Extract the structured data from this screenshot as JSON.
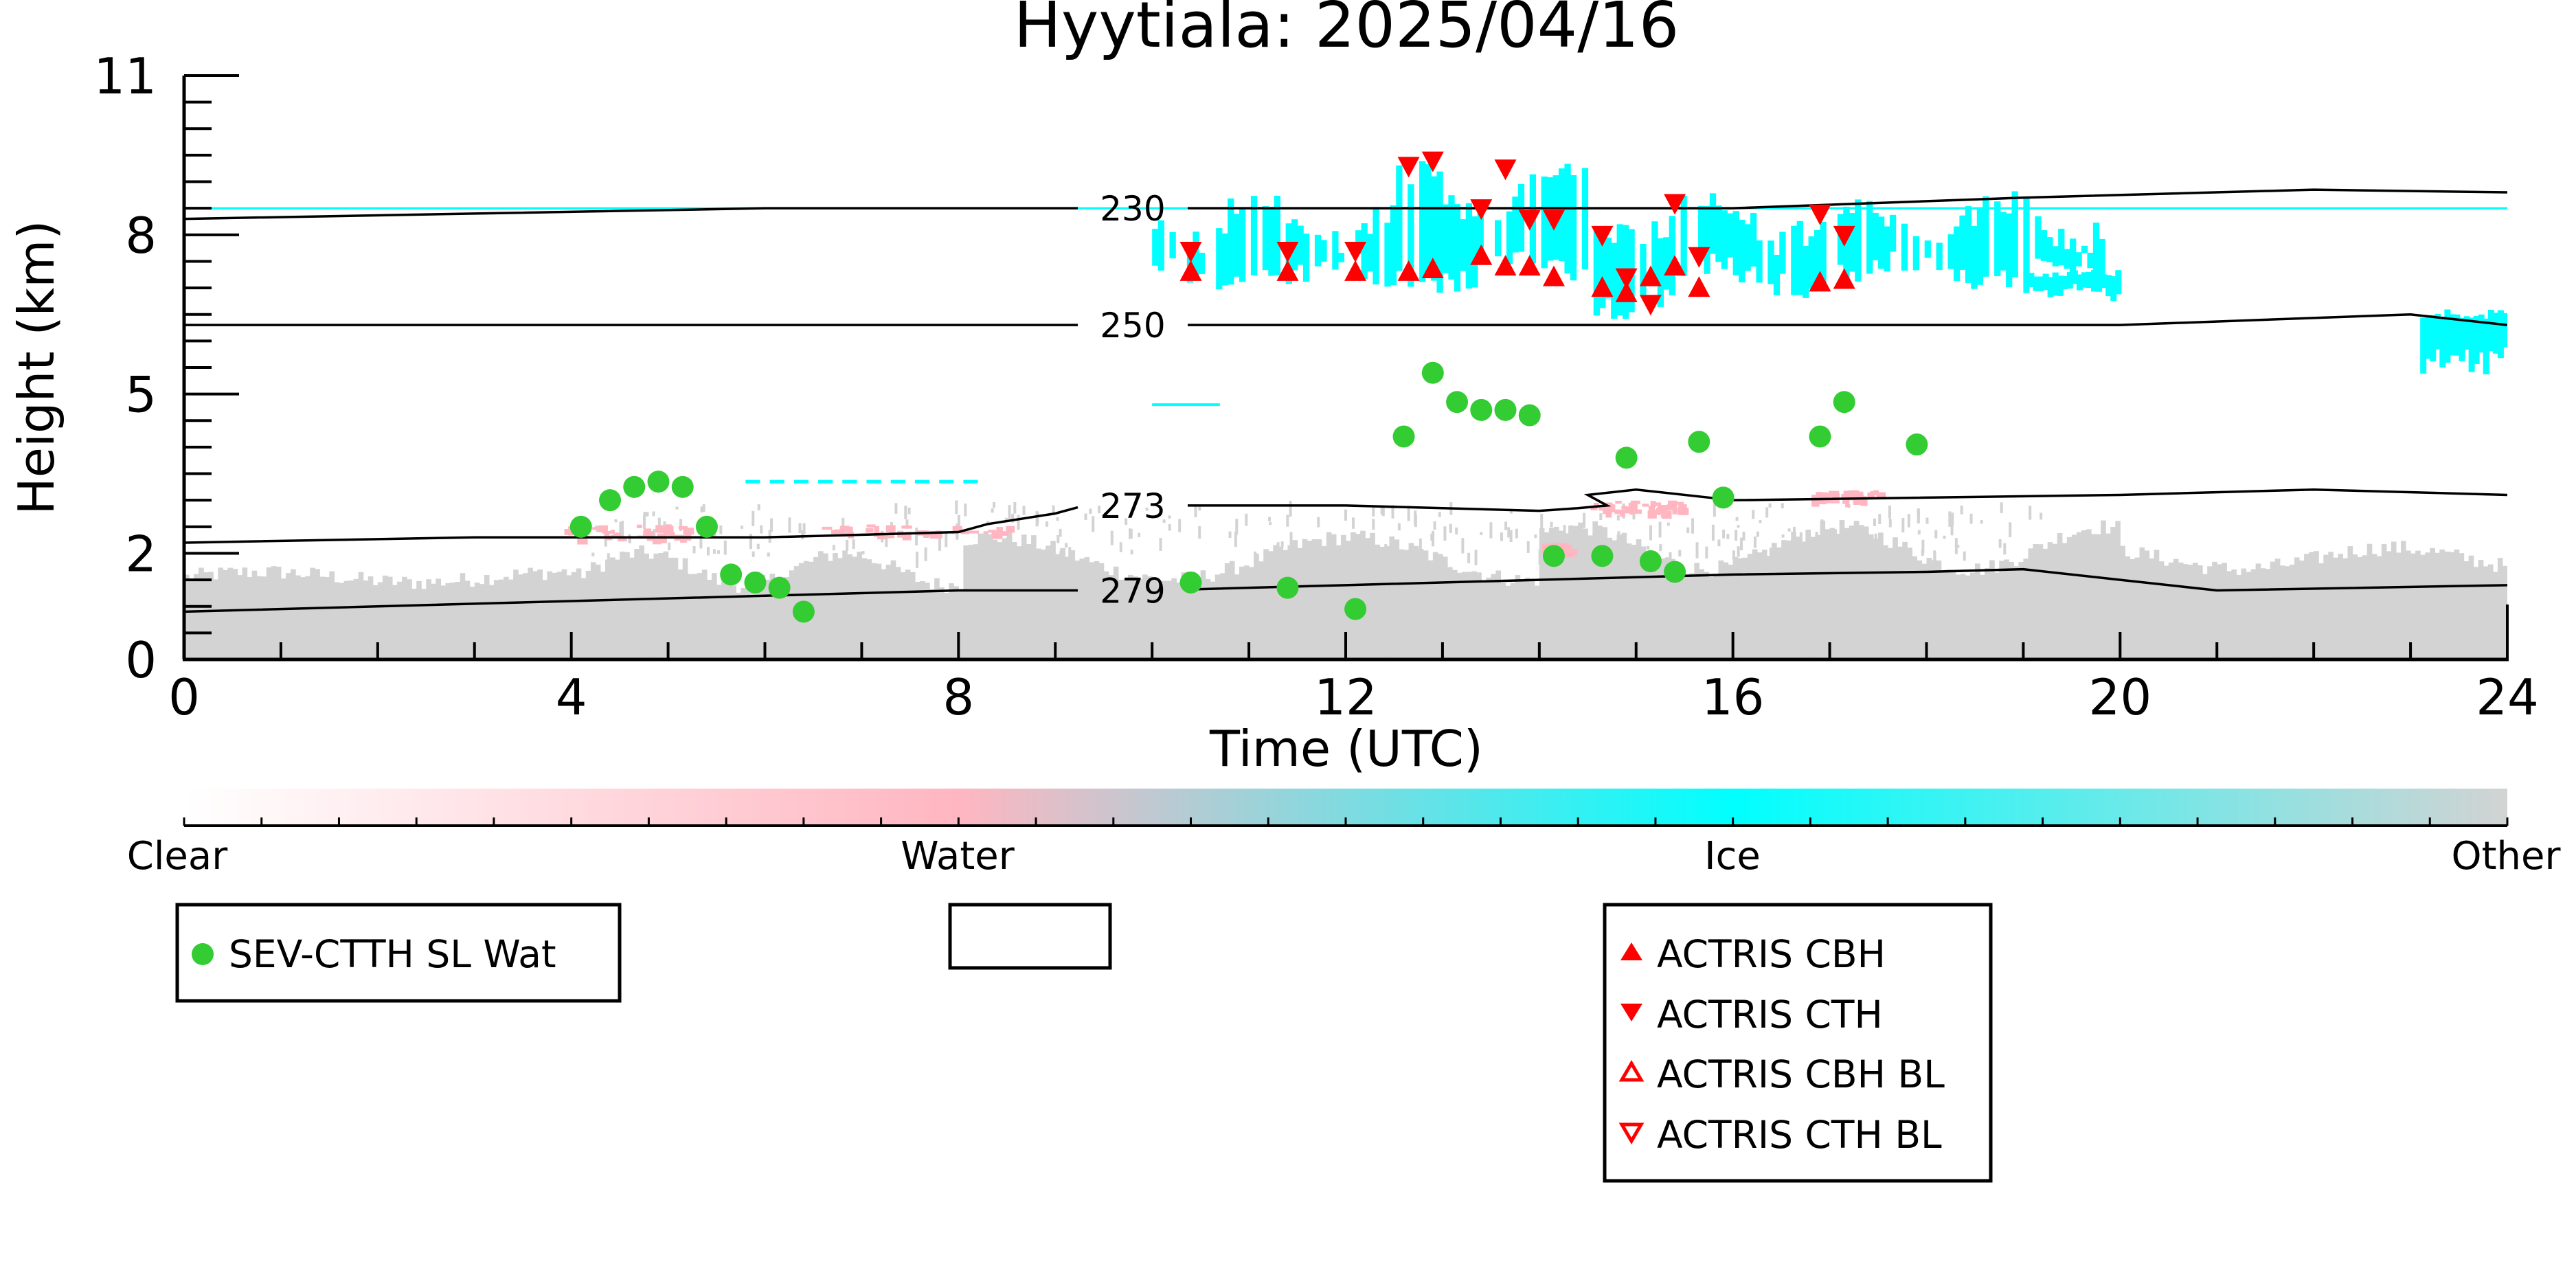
{
  "chart_data": {
    "type": "scatter",
    "title": "Hyytiala: 2025/04/16",
    "xlabel": "Time (UTC)",
    "ylabel": "Height (km)",
    "xlim": [
      0,
      24
    ],
    "ylim": [
      0,
      11
    ],
    "x_ticks": [
      0,
      4,
      8,
      12,
      16,
      20,
      24
    ],
    "x_tick_labels": [
      "0",
      "4",
      "8",
      "12",
      "16",
      "20",
      "24"
    ],
    "y_ticks": [
      0,
      2,
      5,
      8,
      11
    ],
    "y_tick_labels": [
      "0",
      "2",
      "5",
      "8",
      "11"
    ],
    "colors": {
      "clear": "#ffffff",
      "water": "#ffb6c1",
      "ice": "#00ffff",
      "other": "#d3d3d3",
      "sev_marker": "#33cc33",
      "actris_marker": "#ff0000"
    },
    "colorbar": {
      "labels": [
        "Clear",
        "Water",
        "Ice",
        "Other"
      ]
    },
    "contours": [
      {
        "label": "230",
        "label_x": 9.8,
        "points": [
          [
            0,
            8.3
          ],
          [
            3,
            8.4
          ],
          [
            6,
            8.5
          ],
          [
            9.3,
            8.5
          ],
          [
            12,
            8.5
          ],
          [
            16,
            8.5
          ],
          [
            19,
            8.7
          ],
          [
            22,
            8.85
          ],
          [
            24,
            8.8
          ]
        ]
      },
      {
        "label": "250",
        "label_x": 9.8,
        "points": [
          [
            0,
            6.3
          ],
          [
            4,
            6.3
          ],
          [
            8,
            6.3
          ],
          [
            12,
            6.3
          ],
          [
            16,
            6.3
          ],
          [
            20,
            6.3
          ],
          [
            23,
            6.5
          ],
          [
            24,
            6.3
          ]
        ]
      },
      {
        "label": "273",
        "label_x": 9.8,
        "points": [
          [
            0,
            2.2
          ],
          [
            3,
            2.3
          ],
          [
            6,
            2.3
          ],
          [
            8,
            2.4
          ],
          [
            8.3,
            2.55
          ],
          [
            9.0,
            2.75
          ],
          [
            9.3,
            2.9
          ],
          [
            12,
            2.9
          ],
          [
            14,
            2.8
          ],
          [
            14.4,
            2.85
          ],
          [
            14.7,
            2.9
          ],
          [
            14.5,
            3.1
          ],
          [
            15,
            3.2
          ],
          [
            16,
            3.0
          ],
          [
            20,
            3.1
          ],
          [
            22,
            3.2
          ],
          [
            24,
            3.1
          ]
        ]
      },
      {
        "label": "279",
        "label_x": 9.8,
        "points": [
          [
            0,
            0.9
          ],
          [
            4,
            1.1
          ],
          [
            8,
            1.3
          ],
          [
            10,
            1.3
          ],
          [
            12,
            1.4
          ],
          [
            14,
            1.5
          ],
          [
            16,
            1.6
          ],
          [
            18,
            1.65
          ],
          [
            19,
            1.7
          ],
          [
            20,
            1.5
          ],
          [
            21,
            1.3
          ],
          [
            24,
            1.4
          ]
        ]
      }
    ],
    "series": [
      {
        "name": "SEV-CTTH SL Wat",
        "marker": "circle",
        "points": [
          [
            4.1,
            2.5
          ],
          [
            4.4,
            3.0
          ],
          [
            4.65,
            3.25
          ],
          [
            4.9,
            3.35
          ],
          [
            5.15,
            3.25
          ],
          [
            5.4,
            2.5
          ],
          [
            5.65,
            1.6
          ],
          [
            5.9,
            1.45
          ],
          [
            6.15,
            1.35
          ],
          [
            6.4,
            0.9
          ],
          [
            10.4,
            1.45
          ],
          [
            11.4,
            1.35
          ],
          [
            12.1,
            0.95
          ],
          [
            12.6,
            4.2
          ],
          [
            12.9,
            5.4
          ],
          [
            13.15,
            4.85
          ],
          [
            13.4,
            4.7
          ],
          [
            13.65,
            4.7
          ],
          [
            13.9,
            4.6
          ],
          [
            14.15,
            1.95
          ],
          [
            14.65,
            1.95
          ],
          [
            14.9,
            3.8
          ],
          [
            15.15,
            1.85
          ],
          [
            15.4,
            1.65
          ],
          [
            15.65,
            4.1
          ],
          [
            15.9,
            3.05
          ],
          [
            16.9,
            4.2
          ],
          [
            17.15,
            4.85
          ],
          [
            17.9,
            4.05
          ]
        ]
      },
      {
        "name": "ACTRIS CBH",
        "marker": "triangle-up",
        "points": [
          [
            10.4,
            7.3
          ],
          [
            11.4,
            7.3
          ],
          [
            12.1,
            7.3
          ],
          [
            12.65,
            7.3
          ],
          [
            12.9,
            7.35
          ],
          [
            13.4,
            7.6
          ],
          [
            13.65,
            7.4
          ],
          [
            13.9,
            7.4
          ],
          [
            14.15,
            7.2
          ],
          [
            14.65,
            7.0
          ],
          [
            14.9,
            6.9
          ],
          [
            15.15,
            7.2
          ],
          [
            15.4,
            7.4
          ],
          [
            15.65,
            7.0
          ],
          [
            16.9,
            7.1
          ],
          [
            17.15,
            7.15
          ]
        ]
      },
      {
        "name": "ACTRIS CTH",
        "marker": "triangle-down",
        "points": [
          [
            10.4,
            7.7
          ],
          [
            11.4,
            7.7
          ],
          [
            12.1,
            7.7
          ],
          [
            12.65,
            9.3
          ],
          [
            12.9,
            9.4
          ],
          [
            13.4,
            8.5
          ],
          [
            13.65,
            9.25
          ],
          [
            13.9,
            8.3
          ],
          [
            14.15,
            8.3
          ],
          [
            14.65,
            8.0
          ],
          [
            14.9,
            7.2
          ],
          [
            15.15,
            6.7
          ],
          [
            15.4,
            8.6
          ],
          [
            15.65,
            7.6
          ],
          [
            16.9,
            8.4
          ],
          [
            17.15,
            8.0
          ]
        ]
      },
      {
        "name": "ACTRIS CBH BL",
        "marker": "triangle-up-open",
        "points": []
      },
      {
        "name": "ACTRIS CTH BL",
        "marker": "triangle-down-open",
        "points": []
      }
    ],
    "legends": [
      {
        "entries": [
          "SEV-CTTH SL Wat"
        ]
      },
      {
        "entries": []
      },
      {
        "entries": [
          "ACTRIS CBH",
          "ACTRIS CTH",
          "ACTRIS CBH BL",
          "ACTRIS CTH BL"
        ]
      }
    ]
  }
}
